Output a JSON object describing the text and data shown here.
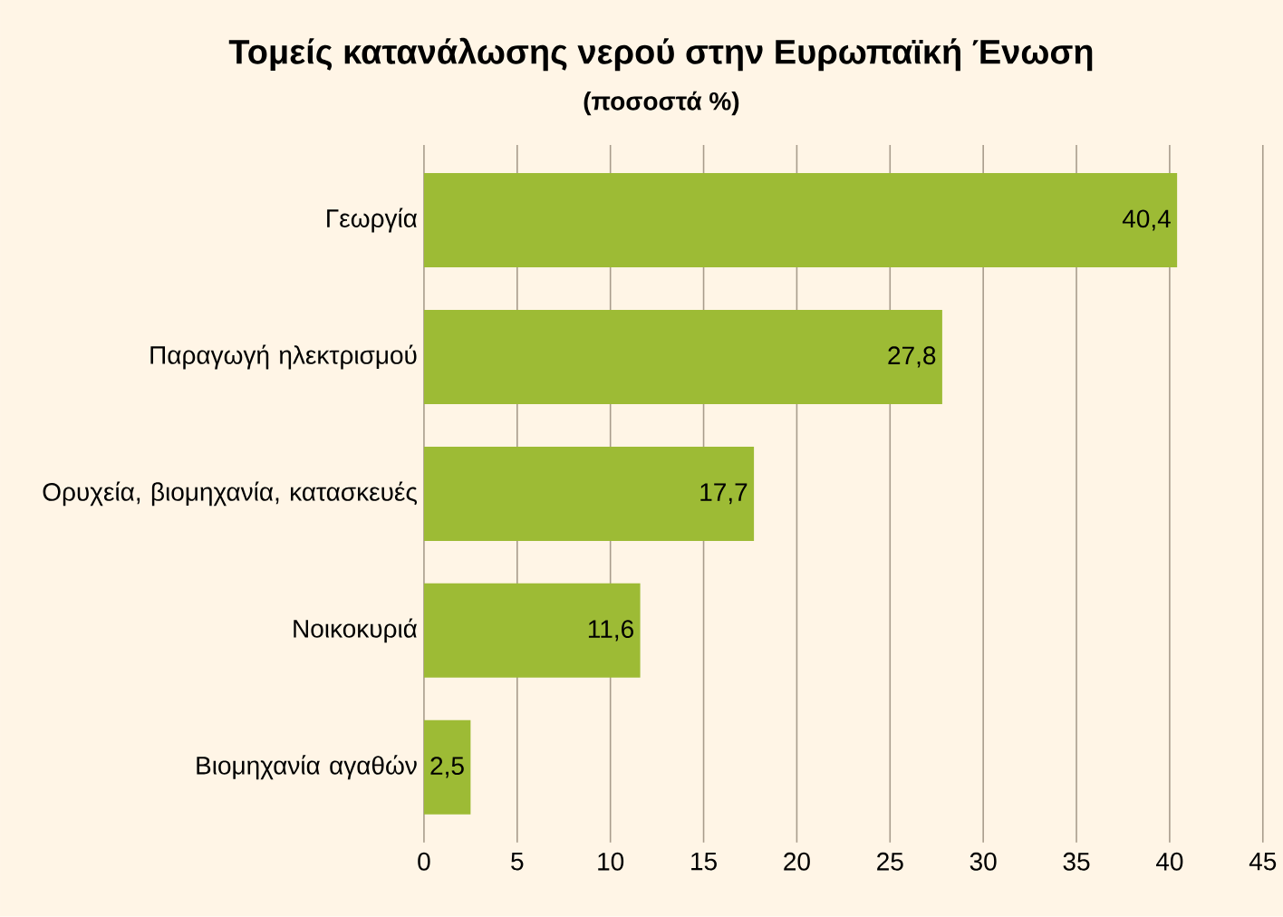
{
  "chart_data": {
    "type": "bar",
    "orientation": "horizontal",
    "title": "Τομείς κατανάλωσης νερού στην Ευρωπαϊκή Ένωση",
    "subtitle": "(ποσοστά %)",
    "categories": [
      "Γεωργία",
      "Παραγωγή ηλεκτρισμού",
      "Ορυχεία, βιομηχανία, κατασκευές",
      "Νοικοκυριά",
      "Βιομηχανία αγαθών"
    ],
    "values": [
      40.4,
      27.8,
      17.7,
      11.6,
      2.5
    ],
    "value_labels": [
      "40,4",
      "27,8",
      "17,7",
      "11,6",
      "2,5"
    ],
    "color": "#9dbb35",
    "xlim": [
      0,
      45
    ],
    "xticks": [
      0,
      5,
      10,
      15,
      20,
      25,
      30,
      35,
      40,
      45
    ],
    "grid": "x"
  }
}
